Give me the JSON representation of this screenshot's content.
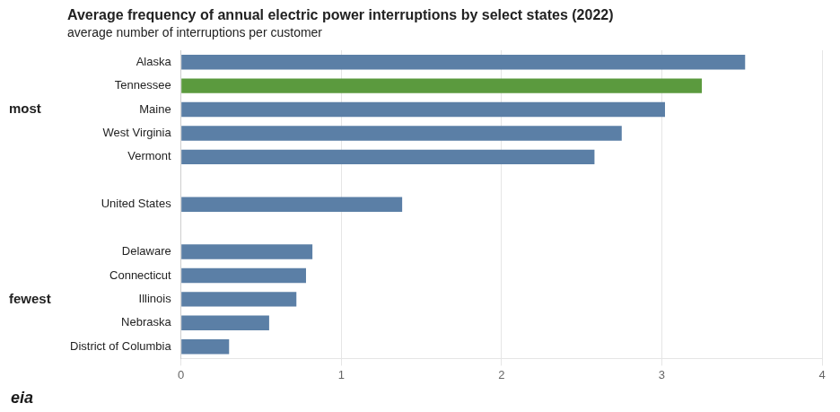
{
  "chart_data": {
    "type": "bar",
    "orientation": "horizontal",
    "title": "Average frequency of annual electric power interruptions by select states (2022)",
    "subtitle": "average number of interruptions per customer",
    "categories": [
      "District of Columbia",
      "Nebraska",
      "Illinois",
      "Connecticut",
      "Delaware",
      null,
      "United States",
      null,
      "Vermont",
      "West Virginia",
      "Maine",
      "Tennessee",
      "Alaska"
    ],
    "values": [
      0.3,
      0.55,
      0.72,
      0.78,
      0.82,
      null,
      1.38,
      null,
      2.58,
      2.75,
      3.02,
      3.25,
      3.52
    ],
    "colors": [
      "#5b7fa6",
      "#5b7fa6",
      "#5b7fa6",
      "#5b7fa6",
      "#5b7fa6",
      null,
      "#5b7fa6",
      null,
      "#5b7fa6",
      "#5b7fa6",
      "#5b7fa6",
      "#5b9a3e",
      "#5b7fa6"
    ],
    "xlim": [
      0,
      4
    ],
    "xticks": [
      0,
      1,
      2,
      3,
      4
    ],
    "grid": true,
    "legend": false,
    "annotations": [
      {
        "text": "most",
        "category": "Maine"
      },
      {
        "text": "fewest",
        "category": "Illinois"
      },
      {
        "text": "eia"
      }
    ]
  }
}
